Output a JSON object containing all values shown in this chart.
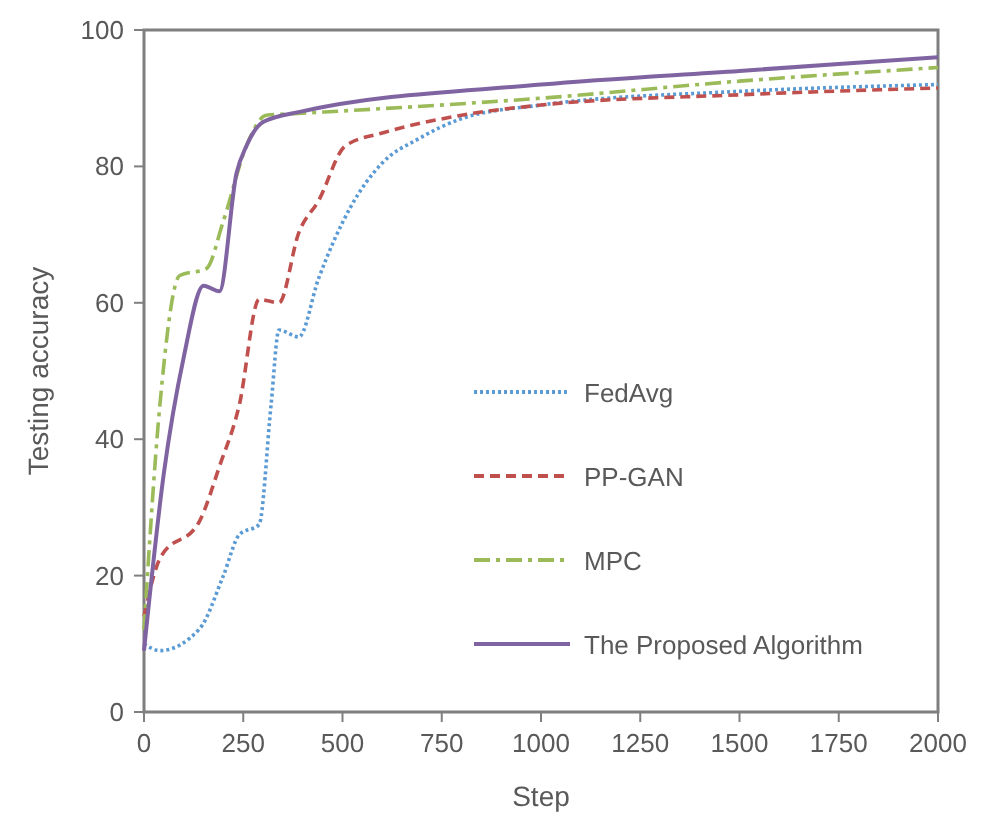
{
  "chart_data": {
    "type": "line",
    "xlabel": "Step",
    "ylabel": "Testing accuracy",
    "xlim": [
      0,
      2000
    ],
    "ylim": [
      0,
      100
    ],
    "xticks": [
      0,
      250,
      500,
      750,
      1000,
      1250,
      1500,
      1750,
      2000
    ],
    "yticks": [
      0,
      20,
      40,
      60,
      80,
      100
    ],
    "grid": false,
    "legend": "bottom right",
    "marker": "none",
    "series": [
      {
        "name": "FedAvg",
        "color": "#5b9bd5",
        "line_style": "dotted",
        "x": [
          0,
          40,
          140,
          200,
          240,
          290,
          320,
          340,
          390,
          440,
          520,
          600,
          690,
          800,
          1000,
          1500,
          2000
        ],
        "values": [
          10,
          9,
          12.2,
          20,
          26,
          27.5,
          45,
          56,
          55,
          63.6,
          74,
          80.5,
          84,
          87,
          89,
          91,
          92
        ]
      },
      {
        "name": "PP-GAN",
        "color": "#c0504d",
        "line_style": "dashed",
        "x": [
          0,
          40,
          140,
          190,
          240,
          290,
          340,
          390,
          440,
          507,
          607,
          800,
          1000,
          1500,
          2000
        ],
        "values": [
          14,
          22.5,
          28,
          36,
          45,
          60.5,
          60,
          70.3,
          75,
          83,
          85,
          87.5,
          89,
          90.5,
          91.5
        ]
      },
      {
        "name": "MPC",
        "color": "#9bbb59",
        "line_style": "dashdot",
        "x": [
          0,
          40,
          90,
          157,
          200,
          258,
          308,
          400,
          1000,
          1500,
          2000
        ],
        "values": [
          12,
          45,
          64,
          65,
          72,
          83,
          87.5,
          87.8,
          90,
          92.5,
          94.5
        ]
      },
      {
        "name": "The Proposed Algorithm",
        "color": "#8064a2",
        "line_style": "solid",
        "x": [
          0,
          50,
          100,
          150,
          190,
          233,
          258,
          300,
          392,
          1000,
          1500,
          2000
        ],
        "values": [
          9,
          35,
          52,
          62.5,
          61.7,
          79,
          83,
          86.5,
          88,
          92,
          94,
          96
        ]
      }
    ]
  }
}
